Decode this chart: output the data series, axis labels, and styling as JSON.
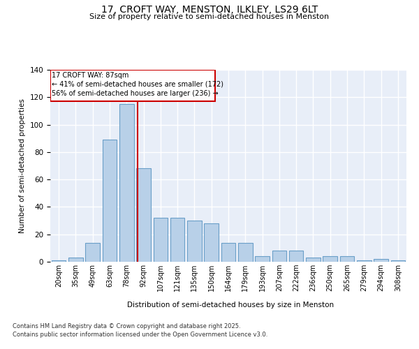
{
  "title1": "17, CROFT WAY, MENSTON, ILKLEY, LS29 6LT",
  "title2": "Size of property relative to semi-detached houses in Menston",
  "xlabel": "Distribution of semi-detached houses by size in Menston",
  "ylabel": "Number of semi-detached properties",
  "property_label": "17 CROFT WAY: 87sqm",
  "pct_smaller": 41,
  "pct_larger": 56,
  "n_smaller": 172,
  "n_larger": 236,
  "bin_labels": [
    "20sqm",
    "35sqm",
    "49sqm",
    "63sqm",
    "78sqm",
    "92sqm",
    "107sqm",
    "121sqm",
    "135sqm",
    "150sqm",
    "164sqm",
    "179sqm",
    "193sqm",
    "207sqm",
    "222sqm",
    "236sqm",
    "250sqm",
    "265sqm",
    "279sqm",
    "294sqm",
    "308sqm"
  ],
  "bar_heights": [
    1,
    3,
    14,
    89,
    115,
    68,
    32,
    32,
    30,
    28,
    14,
    14,
    4,
    8,
    8,
    3,
    4,
    4,
    1,
    2,
    1
  ],
  "bar_color": "#b8d0e8",
  "bar_edge_color": "#6a9fc8",
  "bg_color": "#e8eef8",
  "grid_color": "#ffffff",
  "vline_x": 4,
  "vline_color": "#cc0000",
  "box_color": "#cc0000",
  "ylim": [
    0,
    140
  ],
  "yticks": [
    0,
    20,
    40,
    60,
    80,
    100,
    120,
    140
  ],
  "footnote1": "Contains HM Land Registry data © Crown copyright and database right 2025.",
  "footnote2": "Contains public sector information licensed under the Open Government Licence v3.0."
}
